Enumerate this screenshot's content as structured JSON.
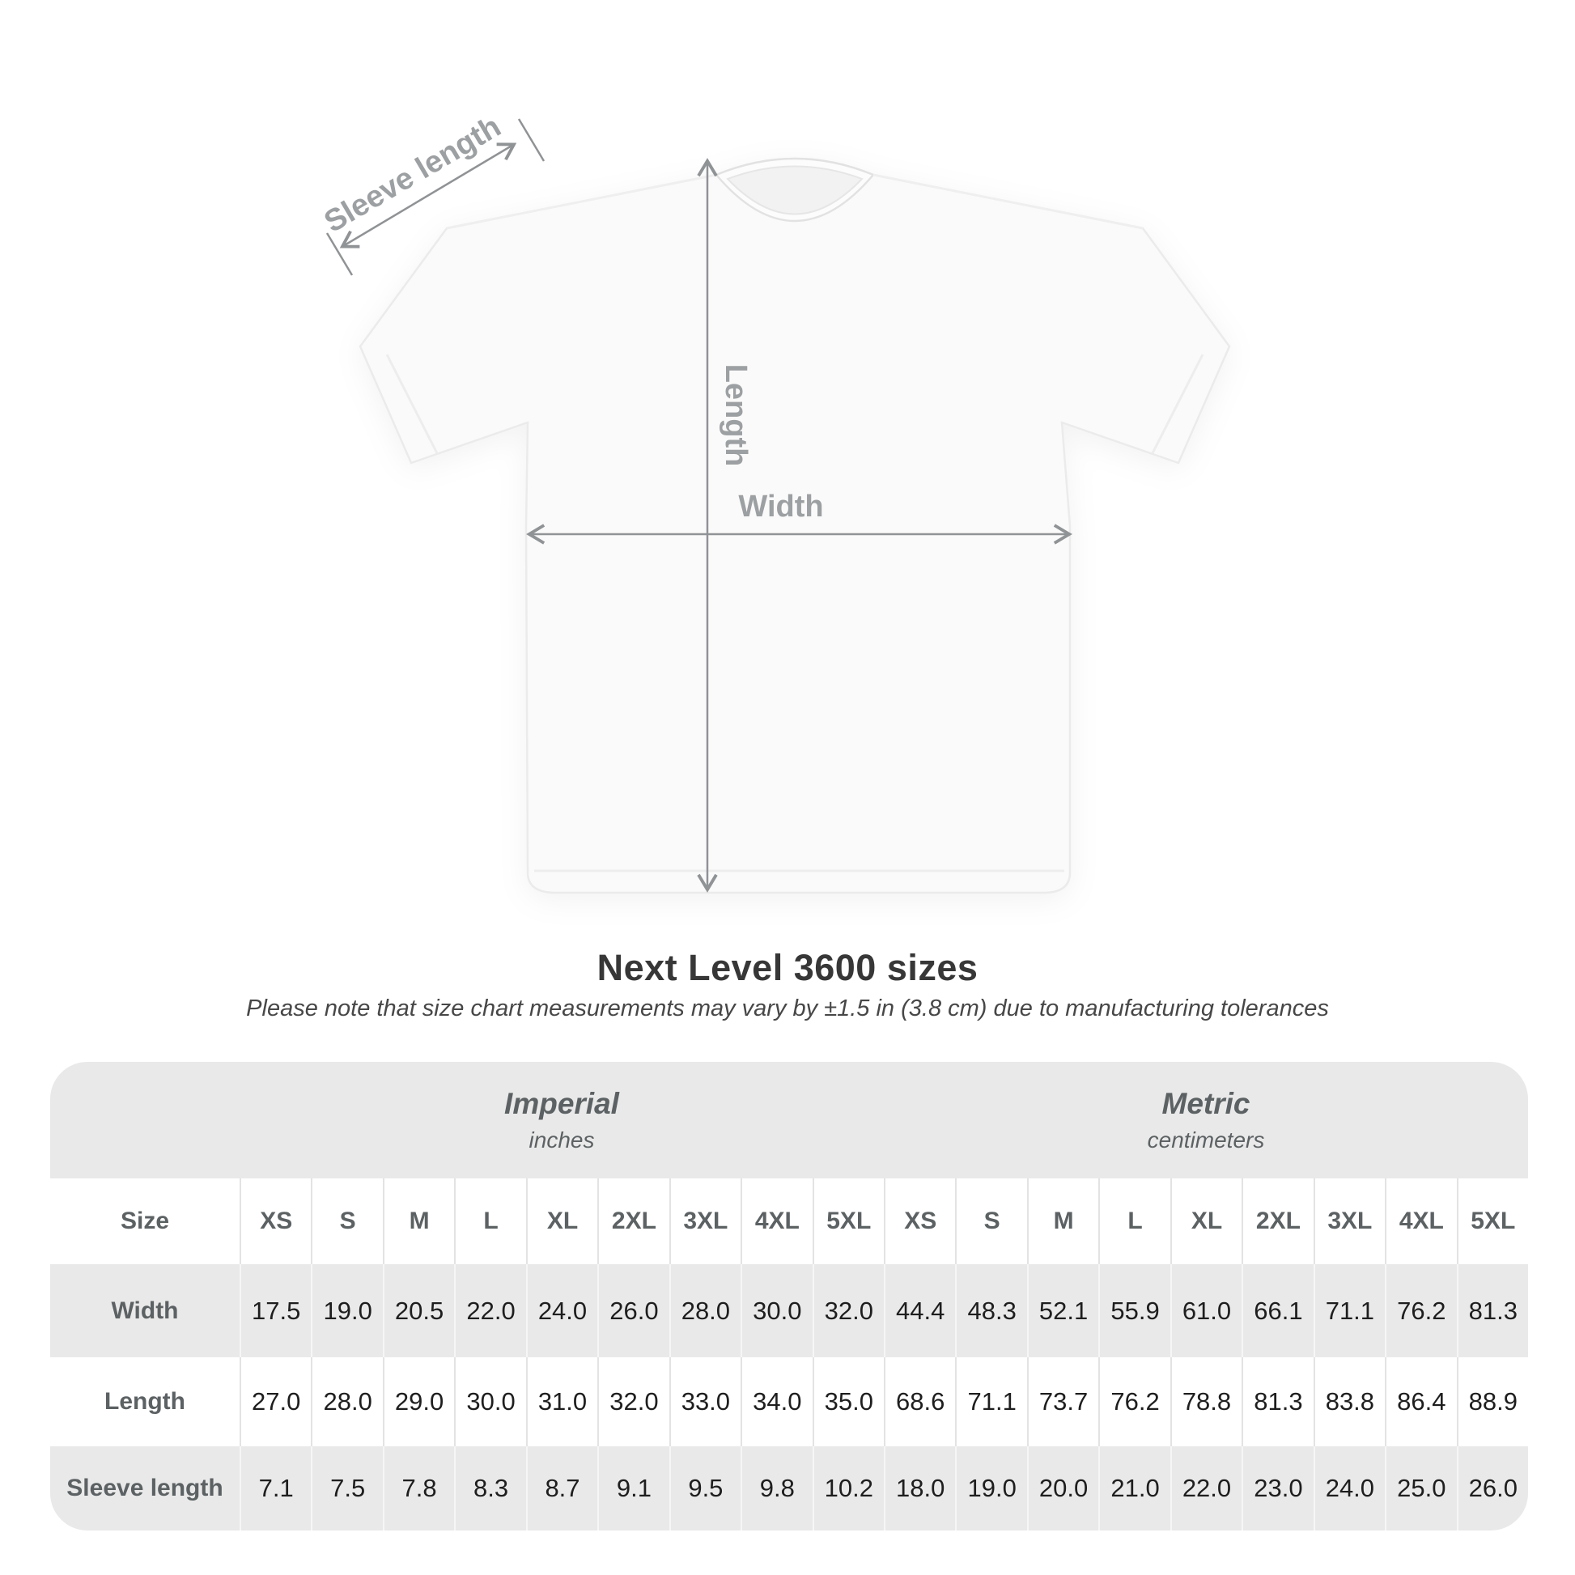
{
  "diagram": {
    "sleeve_label": "Sleeve length",
    "length_label": "Length",
    "width_label": "Width",
    "annotation_color": "#909395",
    "label_color": "#9da0a2"
  },
  "title": "Next Level 3600 sizes",
  "subtitle": "Please note that size chart measurements may vary by ±1.5 in (3.8 cm) due to manufacturing tolerances",
  "chart_data": {
    "type": "table",
    "title": "Next Level 3600 sizes",
    "groups": [
      {
        "label": "Imperial",
        "sublabel": "inches"
      },
      {
        "label": "Metric",
        "sublabel": "centimeters"
      }
    ],
    "size_header": "Size",
    "sizes": [
      "XS",
      "S",
      "M",
      "L",
      "XL",
      "2XL",
      "3XL",
      "4XL",
      "5XL"
    ],
    "rows": [
      {
        "label": "Width",
        "imperial": [
          "17.5",
          "19.0",
          "20.5",
          "22.0",
          "24.0",
          "26.0",
          "28.0",
          "30.0",
          "32.0"
        ],
        "metric": [
          "44.4",
          "48.3",
          "52.1",
          "55.9",
          "61.0",
          "66.1",
          "71.1",
          "76.2",
          "81.3"
        ]
      },
      {
        "label": "Length",
        "imperial": [
          "27.0",
          "28.0",
          "29.0",
          "30.0",
          "31.0",
          "32.0",
          "33.0",
          "34.0",
          "35.0"
        ],
        "metric": [
          "68.6",
          "71.1",
          "73.7",
          "76.2",
          "78.8",
          "81.3",
          "83.8",
          "86.4",
          "88.9"
        ]
      },
      {
        "label": "Sleeve length",
        "imperial": [
          "7.1",
          "7.5",
          "7.8",
          "8.3",
          "8.7",
          "9.1",
          "9.5",
          "9.8",
          "10.2"
        ],
        "metric": [
          "18.0",
          "19.0",
          "20.0",
          "21.0",
          "22.0",
          "23.0",
          "24.0",
          "25.0",
          "26.0"
        ]
      }
    ],
    "layout": {
      "grid": false,
      "row_alt_color": "#e9e9e9",
      "header_color": "#e9e9e9",
      "value_color": "#1e1e1e",
      "label_color": "#5c6163"
    }
  }
}
